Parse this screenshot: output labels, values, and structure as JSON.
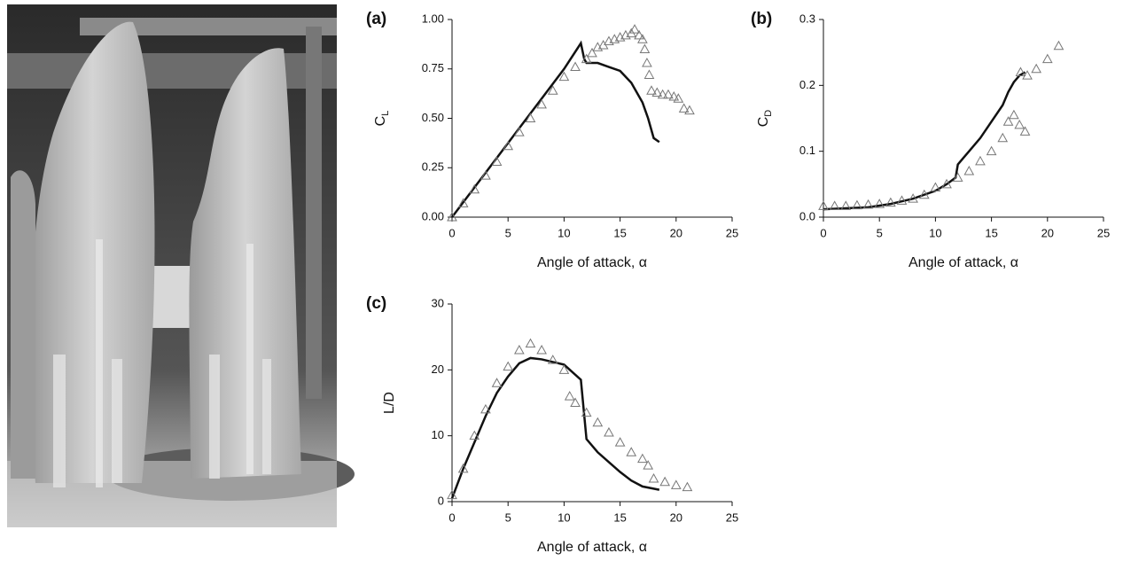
{
  "chart_data": [
    {
      "type": "line",
      "panel_label": "(a)",
      "xlabel": "Angle of attack, α",
      "ylabel": "C",
      "ylabel_sub": "L",
      "xlim": [
        0,
        25
      ],
      "xticks": [
        0,
        5,
        10,
        15,
        20,
        25
      ],
      "ylim": [
        0,
        1
      ],
      "yticks": [
        {
          "value": 0,
          "label": "0.00"
        },
        {
          "value": 0.25,
          "label": "0.25"
        },
        {
          "value": 0.5,
          "label": "0.50"
        },
        {
          "value": 0.75,
          "label": "0.75"
        },
        {
          "value": 1,
          "label": "1.00"
        }
      ],
      "series": [
        {
          "type": "line",
          "color": "#111111",
          "x": [
            0,
            2,
            4,
            6,
            8,
            10,
            11.5,
            11.8,
            12,
            13,
            14,
            15,
            16,
            17,
            17.5,
            18,
            18.5
          ],
          "values": [
            0,
            0.15,
            0.3,
            0.45,
            0.6,
            0.75,
            0.88,
            0.8,
            0.78,
            0.78,
            0.76,
            0.74,
            0.68,
            0.58,
            0.5,
            0.4,
            0.38
          ]
        },
        {
          "type": "scatter",
          "color": "#777777",
          "x": [
            0,
            1,
            2,
            3,
            4,
            5,
            6,
            7,
            8,
            9,
            10,
            11,
            12,
            12.5,
            13,
            13.5,
            14,
            14.5,
            15,
            15.5,
            16,
            16.3,
            16.7,
            17,
            17.2,
            17.4,
            17.6,
            17.8,
            18.3,
            18.8,
            19.3,
            19.8,
            20.2,
            20.7,
            21.2
          ],
          "values": [
            0,
            0.07,
            0.14,
            0.21,
            0.28,
            0.36,
            0.43,
            0.5,
            0.57,
            0.64,
            0.71,
            0.76,
            0.8,
            0.83,
            0.86,
            0.87,
            0.89,
            0.9,
            0.91,
            0.92,
            0.93,
            0.95,
            0.92,
            0.9,
            0.85,
            0.78,
            0.72,
            0.64,
            0.63,
            0.62,
            0.62,
            0.61,
            0.6,
            0.55,
            0.54
          ]
        }
      ]
    },
    {
      "type": "line",
      "panel_label": "(b)",
      "xlabel": "Angle of attack, α",
      "ylabel": "C",
      "ylabel_sub": "D",
      "xlim": [
        0,
        25
      ],
      "xticks": [
        0,
        5,
        10,
        15,
        20,
        25
      ],
      "ylim": [
        0,
        0.3
      ],
      "yticks": [
        {
          "value": 0,
          "label": "0.0"
        },
        0.1,
        0.2,
        0.3
      ],
      "series": [
        {
          "type": "line",
          "color": "#111111",
          "x": [
            0,
            4,
            6,
            8,
            10,
            11,
            11.8,
            12,
            12.5,
            13,
            14,
            15,
            16,
            16.5,
            17,
            17.5,
            18
          ],
          "values": [
            0.012,
            0.015,
            0.02,
            0.028,
            0.04,
            0.05,
            0.06,
            0.08,
            0.09,
            0.1,
            0.12,
            0.145,
            0.17,
            0.19,
            0.205,
            0.215,
            0.22
          ]
        },
        {
          "type": "scatter",
          "color": "#777777",
          "x": [
            0,
            1,
            2,
            3,
            4,
            5,
            6,
            7,
            8,
            9,
            10,
            11,
            12,
            13,
            14,
            15,
            16,
            16.5,
            17,
            17.5,
            18,
            17.6,
            18.2,
            19,
            20,
            21
          ],
          "values": [
            0.017,
            0.017,
            0.017,
            0.018,
            0.019,
            0.02,
            0.022,
            0.025,
            0.028,
            0.034,
            0.045,
            0.05,
            0.06,
            0.07,
            0.085,
            0.1,
            0.12,
            0.145,
            0.155,
            0.14,
            0.13,
            0.22,
            0.215,
            0.225,
            0.24,
            0.26
          ]
        }
      ]
    },
    {
      "type": "line",
      "panel_label": "(c)",
      "xlabel": "Angle of attack, α",
      "ylabel": "L/D",
      "xlim": [
        0,
        25
      ],
      "xticks": [
        0,
        5,
        10,
        15,
        20,
        25
      ],
      "ylim": [
        0,
        30
      ],
      "yticks": [
        0,
        10,
        20,
        30
      ],
      "series": [
        {
          "type": "line",
          "color": "#111111",
          "x": [
            0,
            1,
            2,
            3,
            4,
            5,
            6,
            7,
            8,
            9,
            10,
            11.5,
            12,
            13,
            14,
            15,
            16,
            17,
            18.5
          ],
          "values": [
            0.5,
            5,
            9,
            13,
            16.5,
            19,
            21,
            21.8,
            21.6,
            21.2,
            20.8,
            18.5,
            9.5,
            7.5,
            6,
            4.5,
            3.2,
            2.3,
            1.8
          ]
        },
        {
          "type": "scatter",
          "color": "#777777",
          "x": [
            0,
            1,
            2,
            3,
            4,
            5,
            6,
            7,
            8,
            9,
            10,
            10.5,
            11,
            12,
            13,
            14,
            15,
            16,
            17,
            17.5,
            18,
            19,
            20,
            21
          ],
          "values": [
            1,
            5,
            10,
            14,
            18,
            20.5,
            23,
            24,
            23,
            21.5,
            20,
            16,
            15,
            13.5,
            12,
            10.5,
            9,
            7.5,
            6.5,
            5.5,
            3.5,
            3,
            2.5,
            2.2
          ]
        }
      ]
    }
  ]
}
